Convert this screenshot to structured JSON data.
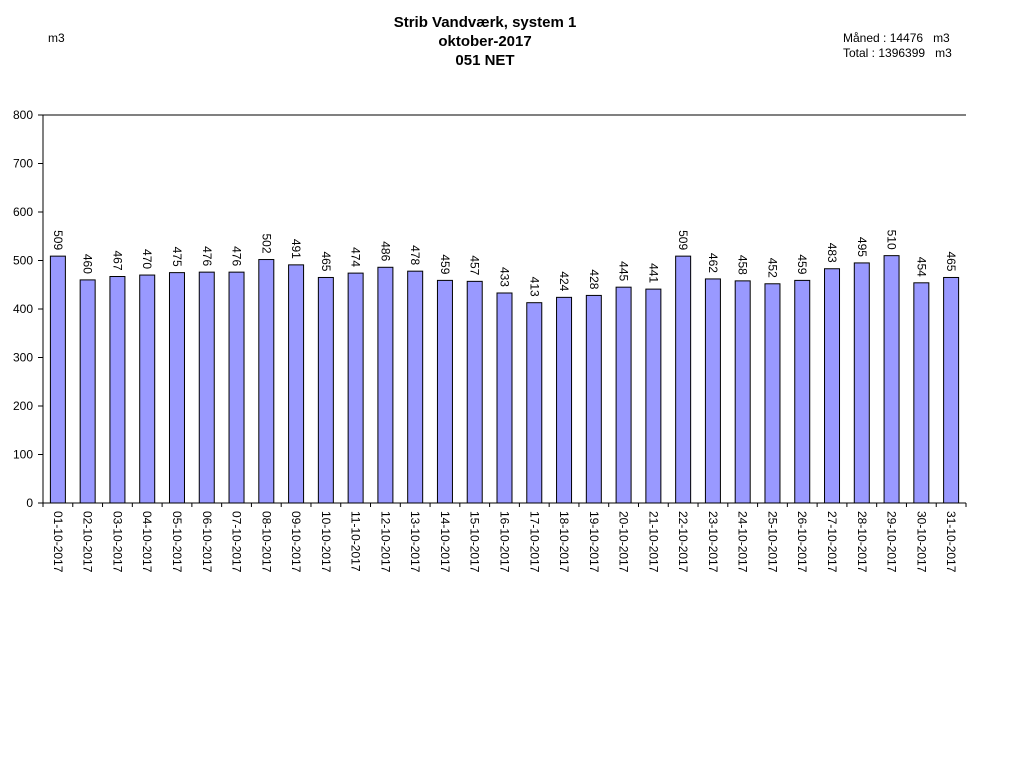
{
  "header": {
    "title_line1": "Strib Vandværk, system 1",
    "title_line2": "oktober-2017",
    "title_line3": "051 NET",
    "y_unit": "m3",
    "month_total": "Måned : 14476   m3",
    "grand_total": "Total : 1396399   m3"
  },
  "colors": {
    "bar_fill": "#9999ff",
    "bar_stroke": "#000000"
  },
  "chart_data": {
    "type": "bar",
    "title": "Strib Vandværk, system 1",
    "subtitle": "oktober-2017 051 NET",
    "ylabel": "m3",
    "xlabel": "",
    "ylim": [
      0,
      800
    ],
    "yticks": [
      0,
      100,
      200,
      300,
      400,
      500,
      600,
      700,
      800
    ],
    "grid": false,
    "categories": [
      "01-10-2017",
      "02-10-2017",
      "03-10-2017",
      "04-10-2017",
      "05-10-2017",
      "06-10-2017",
      "07-10-2017",
      "08-10-2017",
      "09-10-2017",
      "10-10-2017",
      "11-10-2017",
      "12-10-2017",
      "13-10-2017",
      "14-10-2017",
      "15-10-2017",
      "16-10-2017",
      "17-10-2017",
      "18-10-2017",
      "19-10-2017",
      "20-10-2017",
      "21-10-2017",
      "22-10-2017",
      "23-10-2017",
      "24-10-2017",
      "25-10-2017",
      "26-10-2017",
      "27-10-2017",
      "28-10-2017",
      "29-10-2017",
      "30-10-2017",
      "31-10-2017"
    ],
    "values": [
      509,
      460,
      467,
      470,
      475,
      476,
      476,
      502,
      491,
      465,
      474,
      486,
      478,
      459,
      457,
      433,
      413,
      424,
      428,
      445,
      441,
      509,
      462,
      458,
      452,
      459,
      483,
      495,
      510,
      454,
      465
    ]
  }
}
